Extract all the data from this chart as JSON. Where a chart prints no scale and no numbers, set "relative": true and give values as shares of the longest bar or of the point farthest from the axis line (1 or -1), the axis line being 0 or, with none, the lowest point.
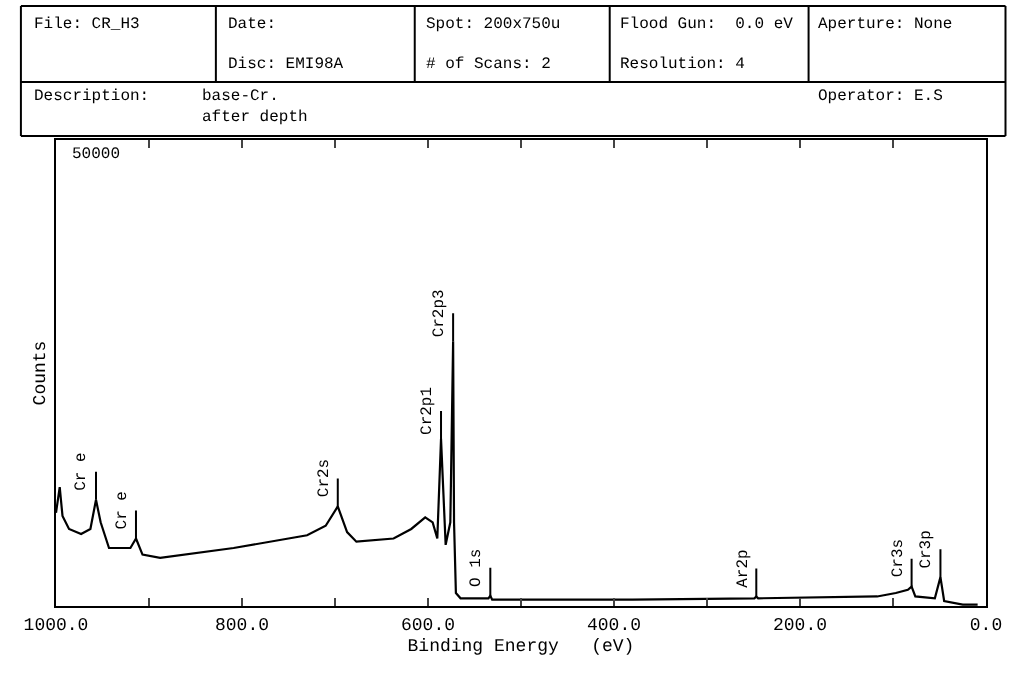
{
  "chart_data": {
    "type": "line",
    "relative": true,
    "xlabel": "Binding Energy   (eV)",
    "ylabel": "Counts",
    "x": [
      1000,
      996,
      993,
      986,
      973,
      963,
      957,
      952,
      943,
      920,
      914,
      907,
      888,
      809,
      730,
      710,
      697,
      687,
      677,
      637,
      618,
      603,
      595,
      590,
      586,
      581,
      576,
      573,
      572,
      570,
      565,
      535,
      533,
      531,
      493,
      380,
      249,
      247,
      245,
      117,
      97,
      84,
      80,
      76,
      55,
      49,
      45,
      25,
      9
    ],
    "series": [
      {
        "color": "#000000",
        "values": [
          0.352,
          0.449,
          0.34,
          0.291,
          0.272,
          0.291,
          0.401,
          0.316,
          0.219,
          0.219,
          0.255,
          0.194,
          0.182,
          0.219,
          0.267,
          0.303,
          0.376,
          0.279,
          0.243,
          0.255,
          0.291,
          0.335,
          0.316,
          0.255,
          0.631,
          0.231,
          0.316,
          1.0,
          0.316,
          0.049,
          0.029,
          0.029,
          0.039,
          0.024,
          0.024,
          0.024,
          0.029,
          0.036,
          0.029,
          0.036,
          0.049,
          0.061,
          0.073,
          0.036,
          0.029,
          0.109,
          0.019,
          0.005,
          0.005
        ]
      }
    ],
    "xlim": [
      1000,
      0
    ],
    "xticks": [
      {
        "value": 1000,
        "label": "1000.0"
      },
      {
        "value": 900,
        "label": null
      },
      {
        "value": 800,
        "label": "800.0"
      },
      {
        "value": 700,
        "label": null
      },
      {
        "value": 600,
        "label": "600.0"
      },
      {
        "value": 500,
        "label": null
      },
      {
        "value": 400,
        "label": "400.0"
      },
      {
        "value": 300,
        "label": null
      },
      {
        "value": 200,
        "label": "200.0"
      },
      {
        "value": 100,
        "label": null
      },
      {
        "value": 0,
        "label": "0.0"
      }
    ],
    "marker": "none",
    "line_style": "solid",
    "annotations": [
      {
        "text": "Cr e",
        "x": 957,
        "y": 0.401
      },
      {
        "text": "Cr e",
        "x": 914,
        "y": 0.255
      },
      {
        "text": "Cr2s",
        "x": 697,
        "y": 0.376
      },
      {
        "text": "Cr2p1",
        "x": 586,
        "y": 0.631
      },
      {
        "text": "Cr2p3",
        "x": 573,
        "y": 1.0
      },
      {
        "text": "O 1s",
        "x": 533,
        "y": 0.039
      },
      {
        "text": "Ar2p",
        "x": 247,
        "y": 0.036
      },
      {
        "text": "Cr3s",
        "x": 80,
        "y": 0.073
      },
      {
        "text": "Cr3p",
        "x": 49,
        "y": 0.109
      },
      "File: CR_H3",
      "Date:",
      "Disc: EMI98A",
      "Spot: 200x750u",
      "# of Scans: 2",
      "Flood Gun:  0.0 eV",
      "Resolution: 4",
      "Aperture: None",
      "Description:",
      "base-Cr.\nafter depth",
      "Operator: E.S",
      "50000"
    ]
  }
}
